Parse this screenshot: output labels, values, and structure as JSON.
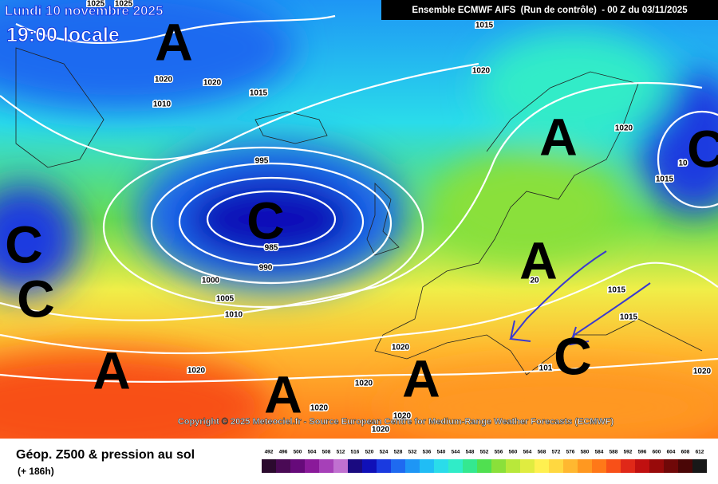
{
  "header": {
    "date": "Lundi 10 novembre 2025",
    "time": "19:00 locale",
    "source": "Ensemble ECMWF AIFS  (Run de contrôle)  - 00 Z du 03/11/2025"
  },
  "isobar_labels": [
    "1025",
    "1025",
    "1015",
    "1020",
    "1020",
    "1010",
    "1015",
    "1020",
    "1020",
    "1015",
    "995",
    "985",
    "990",
    "1000",
    "1005",
    "1010",
    "1015",
    "1015",
    "1020",
    "1020",
    "1020",
    "1020",
    "1020",
    "1020",
    "1020",
    "20",
    "101",
    "10"
  ],
  "pressure_centers": [
    "A",
    "A",
    "A",
    "A",
    "A",
    "A",
    "C",
    "C",
    "C",
    "C",
    "C"
  ],
  "copyright": "Copyright © 2025 Meteociel.fr - Source European Centre for Medium-Range Weather Forecasts (ECMWF)",
  "legend": {
    "title": "Géop. Z500 & pression au sol",
    "subtitle": "(+ 186h)",
    "scale": [
      {
        "label": 492,
        "color": "#2b0a2e"
      },
      {
        "label": 496,
        "color": "#4a0a55"
      },
      {
        "label": 500,
        "color": "#660a7a"
      },
      {
        "label": 504,
        "color": "#8a1a9a"
      },
      {
        "label": 508,
        "color": "#a640b8"
      },
      {
        "label": 512,
        "color": "#c070d0"
      },
      {
        "label": 516,
        "color": "#1a0a80"
      },
      {
        "label": 520,
        "color": "#1010b8"
      },
      {
        "label": 524,
        "color": "#1a3ae0"
      },
      {
        "label": 528,
        "color": "#1f6af0"
      },
      {
        "label": 532,
        "color": "#1e96f5"
      },
      {
        "label": 536,
        "color": "#20bdf5"
      },
      {
        "label": 540,
        "color": "#2adcea"
      },
      {
        "label": 544,
        "color": "#30ecc8"
      },
      {
        "label": 548,
        "color": "#34e890"
      },
      {
        "label": 552,
        "color": "#50e050"
      },
      {
        "label": 556,
        "color": "#8ae03a"
      },
      {
        "label": 560,
        "color": "#b8e83a"
      },
      {
        "label": 564,
        "color": "#e0ec40"
      },
      {
        "label": 568,
        "color": "#fff050"
      },
      {
        "label": 572,
        "color": "#ffd840"
      },
      {
        "label": 576,
        "color": "#ffb830"
      },
      {
        "label": 580,
        "color": "#ff9820"
      },
      {
        "label": 584,
        "color": "#ff7818"
      },
      {
        "label": 588,
        "color": "#f85018"
      },
      {
        "label": 592,
        "color": "#e02818"
      },
      {
        "label": 596,
        "color": "#c01010"
      },
      {
        "label": 600,
        "color": "#980a0a"
      },
      {
        "label": 604,
        "color": "#700808"
      },
      {
        "label": 608,
        "color": "#4a0606"
      },
      {
        "label": 612,
        "color": "#181818"
      }
    ]
  }
}
